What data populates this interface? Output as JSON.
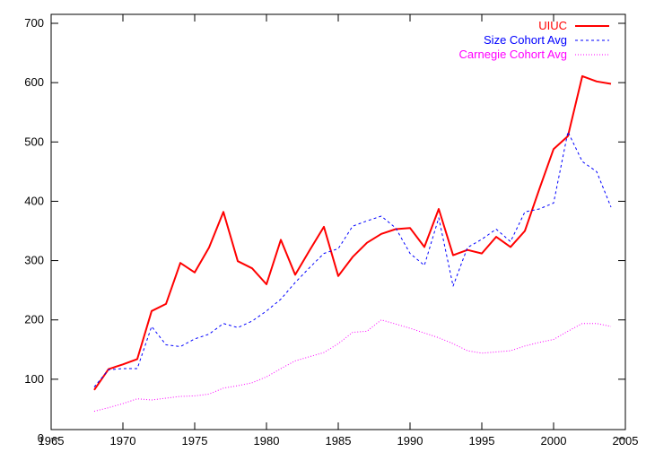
{
  "chart_data": {
    "type": "line",
    "title": "",
    "xlabel": "",
    "ylabel": "",
    "xlim": [
      1965,
      2005
    ],
    "ylim": [
      0,
      700
    ],
    "xticks": [
      1965,
      1970,
      1975,
      1980,
      1985,
      1990,
      1995,
      2000,
      2005
    ],
    "yticks": [
      0,
      100,
      200,
      300,
      400,
      500,
      600,
      700
    ],
    "grid": false,
    "legend_position": "top-right",
    "series": [
      {
        "name": "UIUC",
        "color": "#ff0000",
        "style": "solid",
        "x": [
          1968,
          1969,
          1970,
          1971,
          1972,
          1973,
          1974,
          1975,
          1976,
          1977,
          1978,
          1979,
          1980,
          1981,
          1982,
          1983,
          1984,
          1985,
          1986,
          1987,
          1988,
          1989,
          1990,
          1991,
          1992,
          1993,
          1994,
          1995,
          1996,
          1997,
          1998,
          1999,
          2000,
          2001,
          2002,
          2003,
          2004
        ],
        "values": [
          82,
          117,
          125,
          134,
          215,
          227,
          296,
          280,
          322,
          382,
          299,
          287,
          260,
          335,
          276,
          317,
          357,
          274,
          306,
          330,
          345,
          353,
          355,
          323,
          387,
          309,
          318,
          312,
          340,
          323,
          350,
          420,
          488,
          510,
          611,
          602,
          598
        ]
      },
      {
        "name": "Size Cohort Avg",
        "color": "#0000ff",
        "style": "dashed",
        "x": [
          1968,
          1969,
          1970,
          1971,
          1972,
          1973,
          1974,
          1975,
          1976,
          1977,
          1978,
          1979,
          1980,
          1981,
          1982,
          1983,
          1984,
          1985,
          1986,
          1987,
          1988,
          1989,
          1990,
          1991,
          1992,
          1993,
          1994,
          1995,
          1996,
          1997,
          1998,
          1999,
          2000,
          2001,
          2002,
          2003,
          2004
        ],
        "values": [
          87,
          116,
          118,
          118,
          189,
          158,
          155,
          168,
          176,
          194,
          187,
          198,
          215,
          235,
          263,
          288,
          312,
          320,
          358,
          367,
          375,
          355,
          312,
          292,
          372,
          257,
          322,
          336,
          353,
          332,
          382,
          387,
          397,
          517,
          467,
          450,
          390
        ]
      },
      {
        "name": "Carnegie Cohort Avg",
        "color": "#ff00ff",
        "style": "dotted",
        "x": [
          1968,
          1969,
          1970,
          1971,
          1972,
          1973,
          1974,
          1975,
          1976,
          1977,
          1978,
          1979,
          1980,
          1981,
          1982,
          1983,
          1984,
          1985,
          1986,
          1987,
          1988,
          1989,
          1990,
          1991,
          1992,
          1993,
          1994,
          1995,
          1996,
          1997,
          1998,
          1999,
          2000,
          2001,
          2002,
          2003,
          2004
        ],
        "values": [
          46,
          52,
          59,
          67,
          65,
          68,
          71,
          72,
          75,
          85,
          89,
          94,
          104,
          118,
          131,
          138,
          145,
          160,
          179,
          181,
          200,
          193,
          186,
          178,
          170,
          160,
          148,
          144,
          146,
          148,
          156,
          162,
          167,
          181,
          194,
          194,
          189
        ]
      }
    ]
  }
}
